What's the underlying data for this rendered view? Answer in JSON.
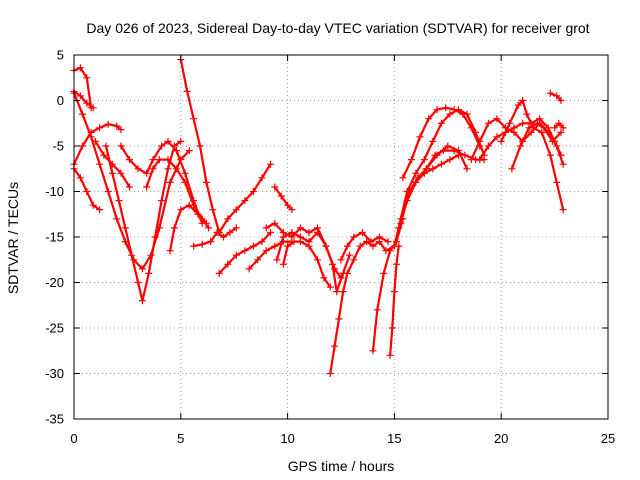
{
  "chart_data": {
    "type": "scatter",
    "title": "Day 026 of 2023, Sidereal Day-to-day VTEC variation (SDTVAR) for receiver grot",
    "xlabel": "GPS time / hours",
    "ylabel": "SDTVAR / TECUs",
    "xlim": [
      0,
      25
    ],
    "ylim": [
      -35,
      5
    ],
    "xticks": [
      "0",
      "5",
      "10",
      "15",
      "20",
      "25"
    ],
    "yticks": [
      "5",
      "0",
      "-5",
      "-10",
      "-15",
      "-20",
      "-25",
      "-30",
      "-35"
    ],
    "grid": true,
    "marker": "+",
    "color": "#ff0000",
    "series": [
      {
        "points": [
          [
            0.0,
            3.3
          ],
          [
            0.3,
            3.6
          ],
          [
            0.6,
            2.5
          ],
          [
            0.8,
            -0.8
          ]
        ]
      },
      {
        "points": [
          [
            0.0,
            1.0
          ],
          [
            0.3,
            0.5
          ],
          [
            0.6,
            -0.3
          ],
          [
            0.9,
            -0.8
          ]
        ]
      },
      {
        "points": [
          [
            0.0,
            -7.5
          ],
          [
            0.3,
            -8.5
          ],
          [
            0.6,
            -10.0
          ],
          [
            0.9,
            -11.5
          ],
          [
            1.2,
            -12.0
          ]
        ]
      },
      {
        "points": [
          [
            0.0,
            0.8
          ],
          [
            0.4,
            -1.5
          ],
          [
            0.8,
            -4.0
          ],
          [
            1.2,
            -7.0
          ],
          [
            1.6,
            -10.0
          ],
          [
            2.0,
            -13.0
          ],
          [
            2.4,
            -15.5
          ],
          [
            2.8,
            -17.5
          ],
          [
            3.2,
            -18.5
          ],
          [
            3.6,
            -17.0
          ],
          [
            4.0,
            -14.0
          ],
          [
            4.5,
            -9.0
          ],
          [
            5.0,
            -6.5
          ],
          [
            5.4,
            -5.5
          ]
        ]
      },
      {
        "points": [
          [
            0.0,
            -7.0
          ],
          [
            0.4,
            -5.0
          ],
          [
            0.8,
            -3.5
          ],
          [
            1.2,
            -3.0
          ],
          [
            1.6,
            -2.6
          ],
          [
            2.0,
            -2.8
          ],
          [
            2.2,
            -3.2
          ]
        ]
      },
      {
        "points": [
          [
            1.0,
            -4.5
          ],
          [
            1.4,
            -6.0
          ],
          [
            1.8,
            -7.0
          ],
          [
            2.2,
            -8.0
          ],
          [
            2.6,
            -9.5
          ]
        ]
      },
      {
        "points": [
          [
            1.5,
            -5.0
          ],
          [
            1.8,
            -8.0
          ],
          [
            2.1,
            -11.0
          ],
          [
            2.4,
            -14.0
          ],
          [
            2.7,
            -17.0
          ],
          [
            3.0,
            -20.0
          ],
          [
            3.2,
            -22.0
          ],
          [
            3.5,
            -19.0
          ],
          [
            3.8,
            -15.0
          ],
          [
            4.1,
            -11.0
          ],
          [
            4.4,
            -7.5
          ],
          [
            4.7,
            -5.0
          ],
          [
            5.0,
            -4.5
          ]
        ]
      },
      {
        "points": [
          [
            2.2,
            -5.0
          ],
          [
            2.6,
            -6.5
          ],
          [
            3.0,
            -7.5
          ],
          [
            3.4,
            -8.0
          ],
          [
            3.7,
            -6.5
          ],
          [
            4.1,
            -5.0
          ],
          [
            4.4,
            -4.5
          ],
          [
            4.8,
            -5.5
          ],
          [
            5.2,
            -8.0
          ],
          [
            5.6,
            -11.0
          ],
          [
            6.0,
            -13.5
          ]
        ]
      },
      {
        "points": [
          [
            3.4,
            -9.5
          ],
          [
            3.7,
            -7.5
          ],
          [
            4.0,
            -6.5
          ],
          [
            4.4,
            -6.5
          ],
          [
            4.8,
            -7.5
          ],
          [
            5.2,
            -9.0
          ],
          [
            5.6,
            -11.5
          ],
          [
            6.0,
            -13.0
          ],
          [
            6.3,
            -14.0
          ]
        ]
      },
      {
        "points": [
          [
            4.5,
            -16.5
          ],
          [
            4.7,
            -14.0
          ],
          [
            5.0,
            -12.0
          ],
          [
            5.4,
            -11.5
          ],
          [
            5.8,
            -12.5
          ],
          [
            6.2,
            -13.5
          ]
        ]
      },
      {
        "points": [
          [
            5.0,
            4.5
          ],
          [
            5.3,
            1.0
          ],
          [
            5.6,
            -2.0
          ],
          [
            5.9,
            -5.0
          ],
          [
            6.2,
            -9.0
          ],
          [
            6.5,
            -12.0
          ],
          [
            6.8,
            -14.5
          ]
        ]
      },
      {
        "points": [
          [
            5.6,
            -16.0
          ],
          [
            6.0,
            -15.8
          ],
          [
            6.4,
            -15.5
          ],
          [
            6.7,
            -14.5
          ],
          [
            7.0,
            -15.0
          ],
          [
            7.3,
            -14.5
          ],
          [
            7.6,
            -14.0
          ]
        ]
      },
      {
        "points": [
          [
            6.8,
            -19.0
          ],
          [
            7.2,
            -18.0
          ],
          [
            7.6,
            -17.0
          ],
          [
            8.0,
            -16.5
          ],
          [
            8.4,
            -16.0
          ],
          [
            8.8,
            -15.5
          ],
          [
            9.2,
            -14.5
          ]
        ]
      },
      {
        "points": [
          [
            6.8,
            -14.5
          ],
          [
            7.2,
            -13.0
          ],
          [
            7.6,
            -12.0
          ],
          [
            8.0,
            -11.0
          ],
          [
            8.4,
            -10.0
          ],
          [
            8.8,
            -8.5
          ],
          [
            9.2,
            -7.0
          ]
        ]
      },
      {
        "points": [
          [
            8.2,
            -18.5
          ],
          [
            8.6,
            -17.5
          ],
          [
            9.0,
            -16.5
          ],
          [
            9.4,
            -16.0
          ],
          [
            9.8,
            -15.5
          ],
          [
            10.2,
            -15.5
          ]
        ]
      },
      {
        "points": [
          [
            9.0,
            -14.0
          ],
          [
            9.4,
            -13.5
          ],
          [
            9.8,
            -14.5
          ],
          [
            10.2,
            -15.0
          ],
          [
            10.6,
            -14.0
          ],
          [
            11.0,
            -14.5
          ],
          [
            11.4,
            -14.0
          ],
          [
            11.8,
            -16.0
          ],
          [
            12.1,
            -18.0
          ],
          [
            12.3,
            -21.0
          ],
          [
            12.6,
            -19.0
          ],
          [
            12.9,
            -17.0
          ]
        ]
      },
      {
        "points": [
          [
            9.5,
            -17.5
          ],
          [
            9.8,
            -15.0
          ],
          [
            10.2,
            -14.5
          ],
          [
            10.6,
            -15.0
          ],
          [
            11.0,
            -15.5
          ],
          [
            11.4,
            -14.5
          ],
          [
            11.8,
            -16.0
          ],
          [
            12.2,
            -18.5
          ],
          [
            12.5,
            -19.5
          ]
        ]
      },
      {
        "points": [
          [
            9.4,
            -9.5
          ],
          [
            9.7,
            -10.5
          ],
          [
            10.0,
            -11.5
          ],
          [
            10.2,
            -12.0
          ]
        ]
      },
      {
        "points": [
          [
            9.8,
            -18.0
          ],
          [
            10.0,
            -16.0
          ],
          [
            10.3,
            -15.5
          ],
          [
            10.6,
            -15.5
          ],
          [
            11.0,
            -16.0
          ],
          [
            11.4,
            -17.5
          ],
          [
            11.7,
            -19.5
          ],
          [
            12.0,
            -20.5
          ]
        ]
      },
      {
        "points": [
          [
            12.0,
            -30.0
          ],
          [
            12.2,
            -27.0
          ],
          [
            12.4,
            -24.0
          ],
          [
            12.6,
            -21.0
          ],
          [
            12.8,
            -19.0
          ],
          [
            13.1,
            -17.5
          ],
          [
            13.4,
            -16.0
          ],
          [
            13.7,
            -15.5
          ],
          [
            14.0,
            -16.0
          ],
          [
            14.3,
            -15.5
          ],
          [
            14.6,
            -16.5
          ],
          [
            15.0,
            -16.0
          ]
        ]
      },
      {
        "points": [
          [
            12.5,
            -17.5
          ],
          [
            12.8,
            -16.0
          ],
          [
            13.1,
            -15.0
          ],
          [
            13.5,
            -14.5
          ],
          [
            13.9,
            -15.5
          ],
          [
            14.3,
            -15.0
          ],
          [
            14.7,
            -15.5
          ]
        ]
      },
      {
        "points": [
          [
            14.0,
            -27.5
          ],
          [
            14.2,
            -23.0
          ],
          [
            14.5,
            -19.0
          ],
          [
            14.8,
            -16.5
          ],
          [
            15.1,
            -15.5
          ],
          [
            15.4,
            -13.0
          ]
        ]
      },
      {
        "points": [
          [
            14.8,
            -28.0
          ],
          [
            14.9,
            -25.0
          ],
          [
            15.0,
            -21.0
          ],
          [
            15.1,
            -18.0
          ],
          [
            15.2,
            -16.0
          ]
        ]
      },
      {
        "points": [
          [
            15.0,
            -16.0
          ],
          [
            15.3,
            -13.0
          ],
          [
            15.6,
            -10.0
          ],
          [
            16.0,
            -8.0
          ],
          [
            16.4,
            -6.5
          ],
          [
            16.8,
            -4.5
          ],
          [
            17.2,
            -2.5
          ],
          [
            17.6,
            -1.5
          ],
          [
            18.0,
            -1.0
          ],
          [
            18.4,
            -1.5
          ],
          [
            18.8,
            -3.5
          ],
          [
            19.2,
            -6.0
          ]
        ]
      },
      {
        "points": [
          [
            15.2,
            -14.0
          ],
          [
            15.6,
            -11.0
          ],
          [
            16.0,
            -9.0
          ],
          [
            16.4,
            -8.0
          ],
          [
            16.8,
            -7.5
          ],
          [
            17.2,
            -7.0
          ],
          [
            17.6,
            -6.5
          ],
          [
            18.0,
            -6.0
          ]
        ]
      },
      {
        "points": [
          [
            15.3,
            -13.5
          ],
          [
            15.7,
            -10.0
          ],
          [
            16.1,
            -8.5
          ],
          [
            16.5,
            -7.5
          ],
          [
            16.9,
            -6.0
          ],
          [
            17.3,
            -5.5
          ],
          [
            17.8,
            -5.5
          ],
          [
            18.3,
            -6.0
          ],
          [
            18.8,
            -6.5
          ],
          [
            19.2,
            -6.5
          ]
        ]
      },
      {
        "points": [
          [
            15.4,
            -8.5
          ],
          [
            15.8,
            -6.5
          ],
          [
            16.2,
            -4.0
          ],
          [
            16.6,
            -2.0
          ],
          [
            17.0,
            -1.0
          ],
          [
            17.4,
            -0.8
          ],
          [
            17.8,
            -1.0
          ],
          [
            18.2,
            -1.5
          ],
          [
            18.6,
            -3.0
          ],
          [
            19.0,
            -5.0
          ]
        ]
      },
      {
        "points": [
          [
            16.5,
            -7.5
          ],
          [
            17.0,
            -6.0
          ],
          [
            17.5,
            -5.0
          ],
          [
            18.0,
            -5.5
          ],
          [
            18.4,
            -7.5
          ]
        ]
      },
      {
        "points": [
          [
            19.0,
            -6.5
          ],
          [
            19.4,
            -5.0
          ],
          [
            19.8,
            -4.0
          ],
          [
            20.2,
            -3.5
          ],
          [
            20.6,
            -3.0
          ],
          [
            21.0,
            -2.5
          ],
          [
            21.4,
            -2.5
          ],
          [
            21.8,
            -2.0
          ],
          [
            22.2,
            -3.0
          ],
          [
            22.5,
            -4.5
          ],
          [
            22.8,
            -6.0
          ]
        ]
      },
      {
        "points": [
          [
            18.6,
            -6.5
          ],
          [
            19.0,
            -4.5
          ],
          [
            19.4,
            -2.5
          ],
          [
            19.8,
            -2.0
          ],
          [
            20.2,
            -3.0
          ],
          [
            20.6,
            -3.5
          ],
          [
            21.0,
            -4.5
          ],
          [
            21.4,
            -3.5
          ],
          [
            21.8,
            -2.5
          ],
          [
            22.2,
            -3.5
          ],
          [
            22.6,
            -5.0
          ],
          [
            22.9,
            -7.0
          ]
        ]
      },
      {
        "points": [
          [
            20.0,
            -4.5
          ],
          [
            20.4,
            -2.5
          ],
          [
            20.8,
            -0.5
          ],
          [
            21.0,
            0.0
          ],
          [
            21.2,
            -1.5
          ],
          [
            21.5,
            -3.0
          ],
          [
            21.9,
            -3.5
          ],
          [
            22.3,
            -6.0
          ],
          [
            22.6,
            -9.0
          ],
          [
            22.9,
            -12.0
          ]
        ]
      },
      {
        "points": [
          [
            20.5,
            -7.5
          ],
          [
            20.9,
            -5.0
          ],
          [
            21.3,
            -3.0
          ],
          [
            21.7,
            -2.5
          ],
          [
            22.0,
            -3.0
          ],
          [
            22.4,
            -4.5
          ],
          [
            22.8,
            -3.5
          ]
        ]
      },
      {
        "points": [
          [
            22.3,
            0.8
          ],
          [
            22.6,
            0.5
          ],
          [
            22.8,
            0.0
          ]
        ]
      },
      {
        "points": [
          [
            22.5,
            -3.0
          ],
          [
            22.7,
            -2.5
          ],
          [
            22.9,
            -3.0
          ]
        ]
      }
    ]
  }
}
